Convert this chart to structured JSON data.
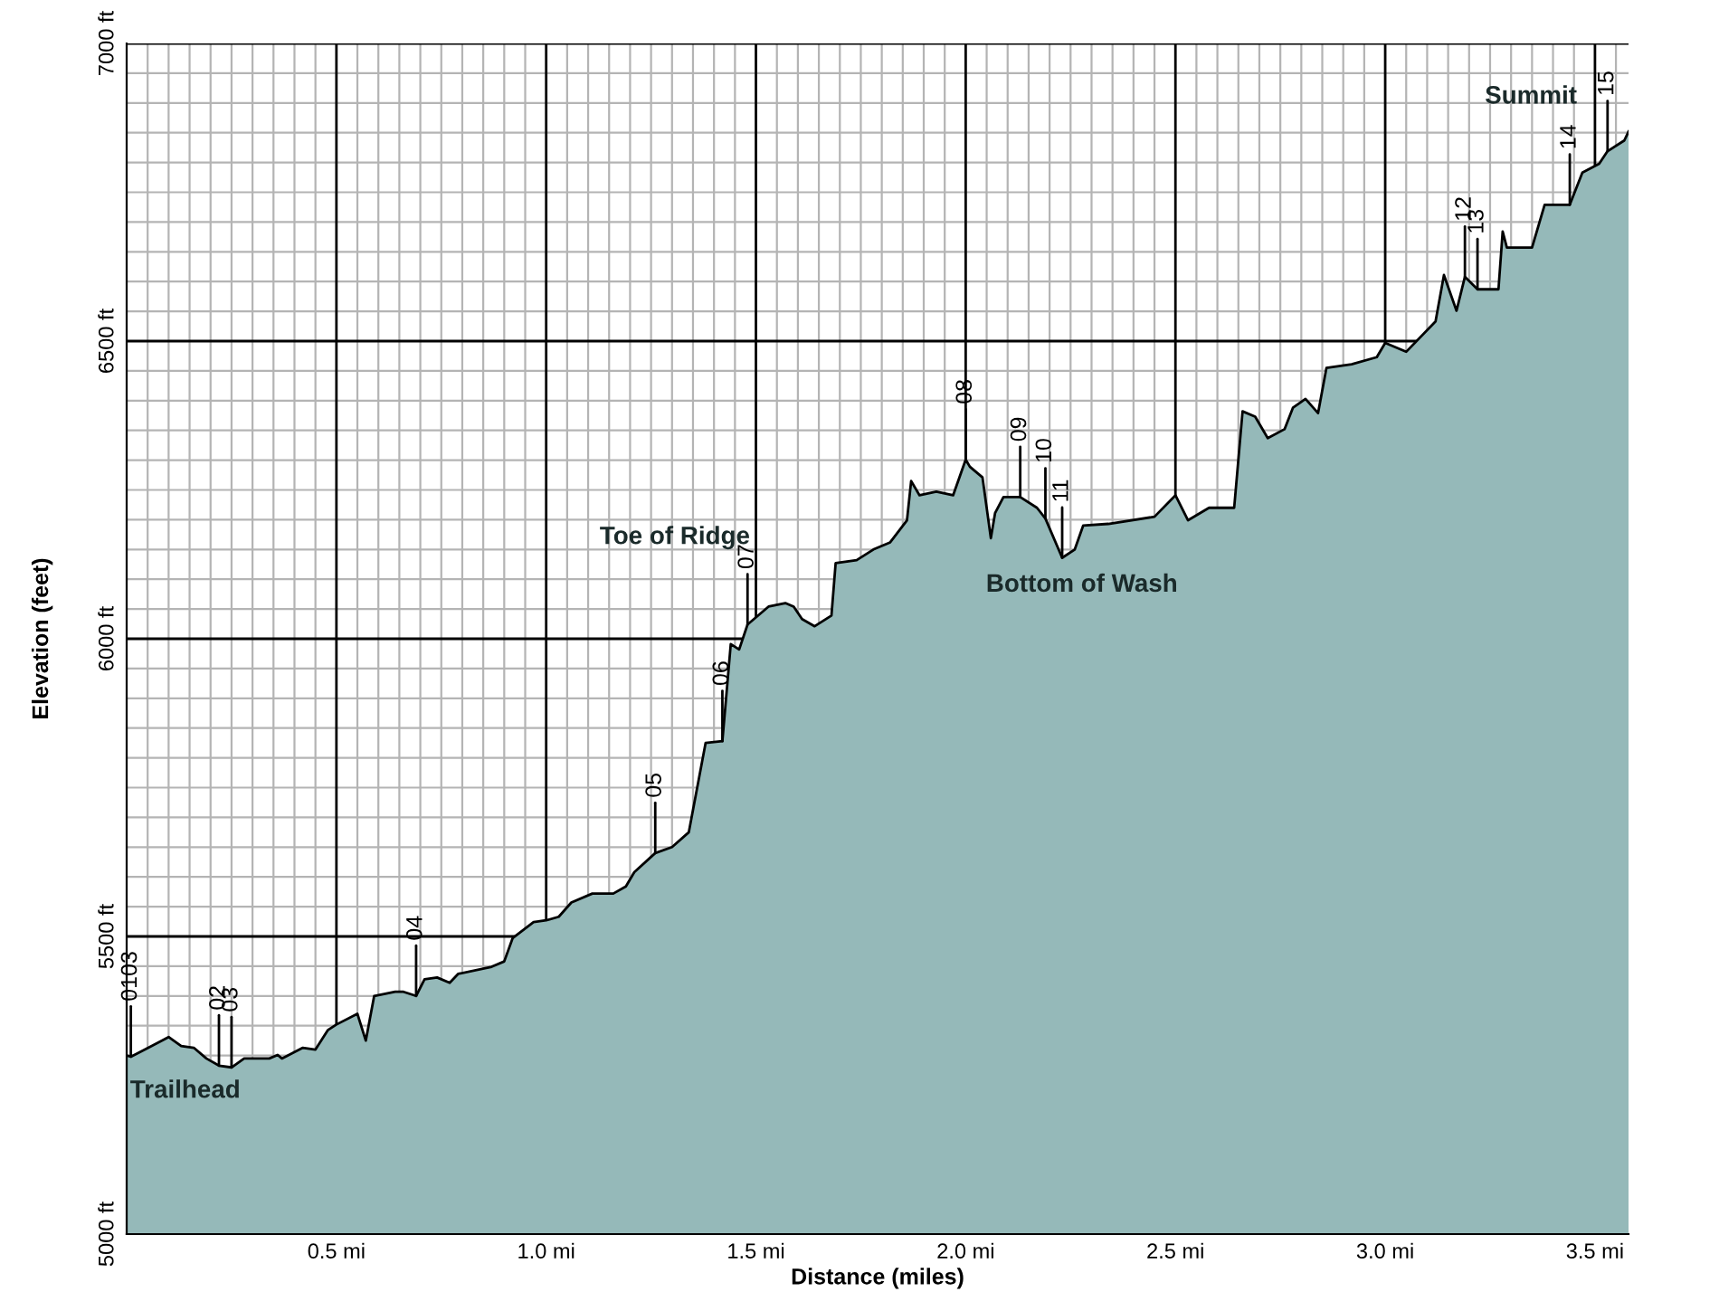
{
  "chart_data": {
    "type": "area",
    "xlabel": "Distance (miles)",
    "ylabel": "Elevation (feet)",
    "xlim": [
      0,
      3.58
    ],
    "ylim": [
      5000,
      7000
    ],
    "xticks": [
      {
        "value": 0.05,
        "label": null
      },
      {
        "value": 0.1,
        "label": null
      },
      {
        "value": 0.15,
        "label": null
      },
      {
        "value": 0.2,
        "label": null
      },
      {
        "value": 0.25,
        "label": null
      },
      {
        "value": 0.3,
        "label": null
      },
      {
        "value": 0.35,
        "label": null
      },
      {
        "value": 0.4,
        "label": null
      },
      {
        "value": 0.45,
        "label": null
      },
      {
        "value": 0.5,
        "label": "0.5 mi"
      },
      {
        "value": 0.55,
        "label": null
      },
      {
        "value": 0.6,
        "label": null
      },
      {
        "value": 0.65,
        "label": null
      },
      {
        "value": 0.7,
        "label": null
      },
      {
        "value": 0.75,
        "label": null
      },
      {
        "value": 0.8,
        "label": null
      },
      {
        "value": 0.85,
        "label": null
      },
      {
        "value": 0.9,
        "label": null
      },
      {
        "value": 0.95,
        "label": null
      },
      {
        "value": 1.0,
        "label": "1.0 mi"
      },
      {
        "value": 1.05,
        "label": null
      },
      {
        "value": 1.1,
        "label": null
      },
      {
        "value": 1.15,
        "label": null
      },
      {
        "value": 1.2,
        "label": null
      },
      {
        "value": 1.25,
        "label": null
      },
      {
        "value": 1.3,
        "label": null
      },
      {
        "value": 1.35,
        "label": null
      },
      {
        "value": 1.4,
        "label": null
      },
      {
        "value": 1.45,
        "label": null
      },
      {
        "value": 1.5,
        "label": "1.5 mi"
      },
      {
        "value": 1.55,
        "label": null
      },
      {
        "value": 1.6,
        "label": null
      },
      {
        "value": 1.65,
        "label": null
      },
      {
        "value": 1.7,
        "label": null
      },
      {
        "value": 1.75,
        "label": null
      },
      {
        "value": 1.8,
        "label": null
      },
      {
        "value": 1.85,
        "label": null
      },
      {
        "value": 1.9,
        "label": null
      },
      {
        "value": 1.95,
        "label": null
      },
      {
        "value": 2.0,
        "label": "2.0 mi"
      },
      {
        "value": 2.05,
        "label": null
      },
      {
        "value": 2.1,
        "label": null
      },
      {
        "value": 2.15,
        "label": null
      },
      {
        "value": 2.2,
        "label": null
      },
      {
        "value": 2.25,
        "label": null
      },
      {
        "value": 2.3,
        "label": null
      },
      {
        "value": 2.35,
        "label": null
      },
      {
        "value": 2.4,
        "label": null
      },
      {
        "value": 2.45,
        "label": null
      },
      {
        "value": 2.5,
        "label": "2.5 mi"
      },
      {
        "value": 2.55,
        "label": null
      },
      {
        "value": 2.6,
        "label": null
      },
      {
        "value": 2.65,
        "label": null
      },
      {
        "value": 2.7,
        "label": null
      },
      {
        "value": 2.75,
        "label": null
      },
      {
        "value": 2.8,
        "label": null
      },
      {
        "value": 2.85,
        "label": null
      },
      {
        "value": 2.9,
        "label": null
      },
      {
        "value": 2.95,
        "label": null
      },
      {
        "value": 3.0,
        "label": "3.0 mi"
      },
      {
        "value": 3.05,
        "label": null
      },
      {
        "value": 3.1,
        "label": null
      },
      {
        "value": 3.15,
        "label": null
      },
      {
        "value": 3.2,
        "label": null
      },
      {
        "value": 3.25,
        "label": null
      },
      {
        "value": 3.3,
        "label": null
      },
      {
        "value": 3.35,
        "label": null
      },
      {
        "value": 3.4,
        "label": null
      },
      {
        "value": 3.45,
        "label": null
      },
      {
        "value": 3.5,
        "label": "3.5 mi"
      },
      {
        "value": 3.55,
        "label": null
      }
    ],
    "yticks": [
      {
        "value": 5000,
        "label": "5000 ft"
      },
      {
        "value": 5300,
        "label": null
      },
      {
        "value": 5350,
        "label": null
      },
      {
        "value": 5400,
        "label": null
      },
      {
        "value": 5450,
        "label": null
      },
      {
        "value": 5500,
        "label": "5500 ft"
      },
      {
        "value": 5550,
        "label": null
      },
      {
        "value": 5600,
        "label": null
      },
      {
        "value": 5650,
        "label": null
      },
      {
        "value": 5700,
        "label": null
      },
      {
        "value": 5750,
        "label": null
      },
      {
        "value": 5800,
        "label": null
      },
      {
        "value": 5850,
        "label": null
      },
      {
        "value": 5900,
        "label": null
      },
      {
        "value": 5950,
        "label": null
      },
      {
        "value": 6000,
        "label": "6000 ft"
      },
      {
        "value": 6050,
        "label": null
      },
      {
        "value": 6100,
        "label": null
      },
      {
        "value": 6150,
        "label": null
      },
      {
        "value": 6200,
        "label": null
      },
      {
        "value": 6250,
        "label": null
      },
      {
        "value": 6300,
        "label": null
      },
      {
        "value": 6350,
        "label": null
      },
      {
        "value": 6400,
        "label": null
      },
      {
        "value": 6450,
        "label": null
      },
      {
        "value": 6500,
        "label": "6500 ft"
      },
      {
        "value": 6550,
        "label": null
      },
      {
        "value": 6600,
        "label": null
      },
      {
        "value": 6650,
        "label": null
      },
      {
        "value": 6700,
        "label": null
      },
      {
        "value": 6750,
        "label": null
      },
      {
        "value": 6800,
        "label": null
      },
      {
        "value": 6850,
        "label": null
      },
      {
        "value": 6900,
        "label": null
      },
      {
        "value": 6950,
        "label": null
      },
      {
        "value": 7000,
        "label": "7000 ft"
      }
    ],
    "grid": true,
    "series": [
      {
        "color": "#95b9b9",
        "x": [
          0,
          0.01,
          0.06,
          0.1,
          0.13,
          0.16,
          0.19,
          0.22,
          0.25,
          0.28,
          0.34,
          0.36,
          0.37,
          0.42,
          0.45,
          0.48,
          0.5,
          0.55,
          0.57,
          0.59,
          0.64,
          0.66,
          0.69,
          0.71,
          0.74,
          0.77,
          0.79,
          0.87,
          0.9,
          0.92,
          0.97,
          1.0,
          1.03,
          1.06,
          1.11,
          1.16,
          1.19,
          1.21,
          1.26,
          1.3,
          1.34,
          1.38,
          1.42,
          1.44,
          1.46,
          1.48,
          1.53,
          1.57,
          1.59,
          1.61,
          1.64,
          1.68,
          1.69,
          1.74,
          1.78,
          1.82,
          1.86,
          1.87,
          1.89,
          1.93,
          1.97,
          2.0,
          2.01,
          2.04,
          2.06,
          2.07,
          2.09,
          2.13,
          2.17,
          2.19,
          2.23,
          2.26,
          2.28,
          2.34,
          2.45,
          2.5,
          2.53,
          2.58,
          2.64,
          2.66,
          2.69,
          2.72,
          2.76,
          2.78,
          2.81,
          2.84,
          2.86,
          2.92,
          2.98,
          3.0,
          3.05,
          3.12,
          3.14,
          3.17,
          3.19,
          3.22,
          3.27,
          3.28,
          3.29,
          3.35,
          3.38,
          3.44,
          3.47,
          3.51,
          3.53,
          3.57,
          3.58
        ],
        "values": [
          5300,
          5298,
          5316,
          5331,
          5316,
          5313,
          5295,
          5283,
          5280,
          5295,
          5295,
          5301,
          5295,
          5313,
          5310,
          5343,
          5352,
          5370,
          5325,
          5400,
          5407,
          5407,
          5400,
          5428,
          5431,
          5422,
          5437,
          5449,
          5458,
          5497,
          5524,
          5527,
          5533,
          5557,
          5572,
          5572,
          5584,
          5608,
          5640,
          5650,
          5675,
          5825,
          5828,
          5991,
          5982,
          6024,
          6054,
          6060,
          6054,
          6033,
          6021,
          6039,
          6127,
          6132,
          6150,
          6162,
          6199,
          6265,
          6241,
          6247,
          6241,
          6301,
          6289,
          6271,
          6169,
          6211,
          6238,
          6238,
          6220,
          6202,
          6136,
          6150,
          6190,
          6193,
          6205,
          6241,
          6199,
          6220,
          6220,
          6382,
          6373,
          6337,
          6352,
          6388,
          6403,
          6379,
          6455,
          6461,
          6473,
          6497,
          6482,
          6533,
          6611,
          6551,
          6608,
          6587,
          6587,
          6684,
          6657,
          6657,
          6729,
          6729,
          6783,
          6798,
          6819,
          6837,
          6852
        ]
      }
    ],
    "annotations": [
      {
        "text": "0103",
        "x": 0.01,
        "y": 5298
      },
      {
        "text": "02",
        "x": 0.22,
        "y": 5283
      },
      {
        "text": "03",
        "x": 0.25,
        "y": 5280
      },
      {
        "text": "04",
        "x": 0.69,
        "y": 5400
      },
      {
        "text": "05",
        "x": 1.26,
        "y": 5640
      },
      {
        "text": "06",
        "x": 1.42,
        "y": 5828
      },
      {
        "text": "07",
        "x": 1.48,
        "y": 6024
      },
      {
        "text": "08",
        "x": 2.0,
        "y": 6301
      },
      {
        "text": "09",
        "x": 2.13,
        "y": 6238
      },
      {
        "text": "10",
        "x": 2.19,
        "y": 6202
      },
      {
        "text": "11",
        "x": 2.23,
        "y": 6136
      },
      {
        "text": "12",
        "x": 3.19,
        "y": 6608
      },
      {
        "text": "13",
        "x": 3.22,
        "y": 6587
      },
      {
        "text": "14",
        "x": 3.44,
        "y": 6729
      },
      {
        "text": "15",
        "x": 3.53,
        "y": 6819
      },
      "Trailhead",
      "Toe of Ridge",
      "Bottom of Wash",
      "Summit"
    ]
  }
}
